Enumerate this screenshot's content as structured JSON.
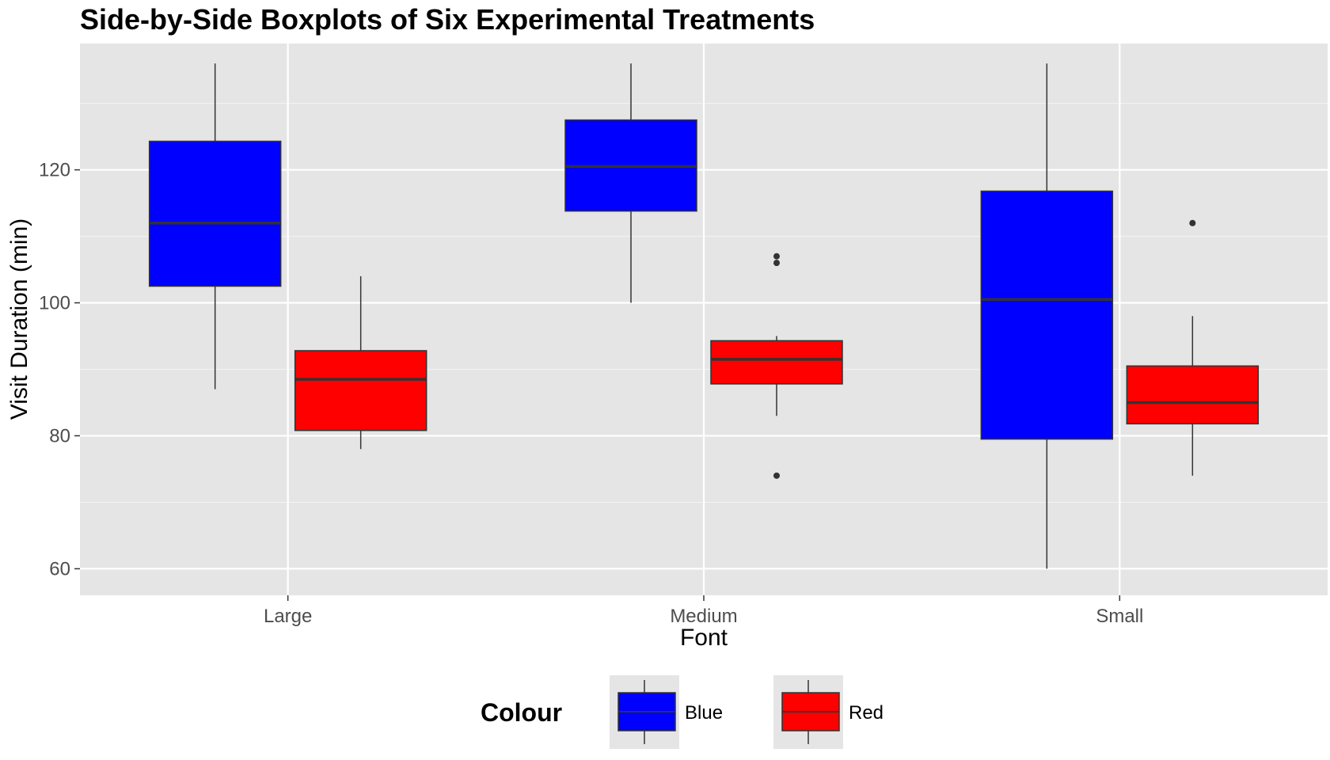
{
  "chart_data": {
    "type": "boxplot",
    "title": "Side-by-Side Boxplots of Six Experimental Treatments",
    "xlabel": "Font",
    "ylabel": "Visit Duration (min)",
    "categories": [
      "Large",
      "Medium",
      "Small"
    ],
    "ylim": [
      56,
      139
    ],
    "yticks": [
      60,
      80,
      100,
      120
    ],
    "grid": true,
    "legend": {
      "title": "Colour",
      "position": "bottom",
      "entries": [
        {
          "name": "Blue",
          "color": "#0000ff"
        },
        {
          "name": "Red",
          "color": "#ff0000"
        }
      ]
    },
    "series": [
      {
        "name": "Blue",
        "color": "#0000ff",
        "boxes": [
          {
            "category": "Large",
            "lower_whisker": 87,
            "q1": 102.5,
            "median": 112,
            "q3": 124.3,
            "upper_whisker": 136,
            "outliers": []
          },
          {
            "category": "Medium",
            "lower_whisker": 100,
            "q1": 113.8,
            "median": 120.5,
            "q3": 127.5,
            "upper_whisker": 136,
            "outliers": []
          },
          {
            "category": "Small",
            "lower_whisker": 60,
            "q1": 79.5,
            "median": 100.5,
            "q3": 116.8,
            "upper_whisker": 136,
            "outliers": []
          }
        ]
      },
      {
        "name": "Red",
        "color": "#ff0000",
        "boxes": [
          {
            "category": "Large",
            "lower_whisker": 78,
            "q1": 80.8,
            "median": 88.5,
            "q3": 92.8,
            "upper_whisker": 104,
            "outliers": []
          },
          {
            "category": "Medium",
            "lower_whisker": 83,
            "q1": 87.8,
            "median": 91.5,
            "q3": 94.3,
            "upper_whisker": 95,
            "outliers": [
              107,
              106,
              74
            ]
          },
          {
            "category": "Small",
            "lower_whisker": 74,
            "q1": 81.8,
            "median": 85,
            "q3": 90.5,
            "upper_whisker": 98,
            "outliers": [
              112
            ]
          }
        ]
      }
    ]
  }
}
